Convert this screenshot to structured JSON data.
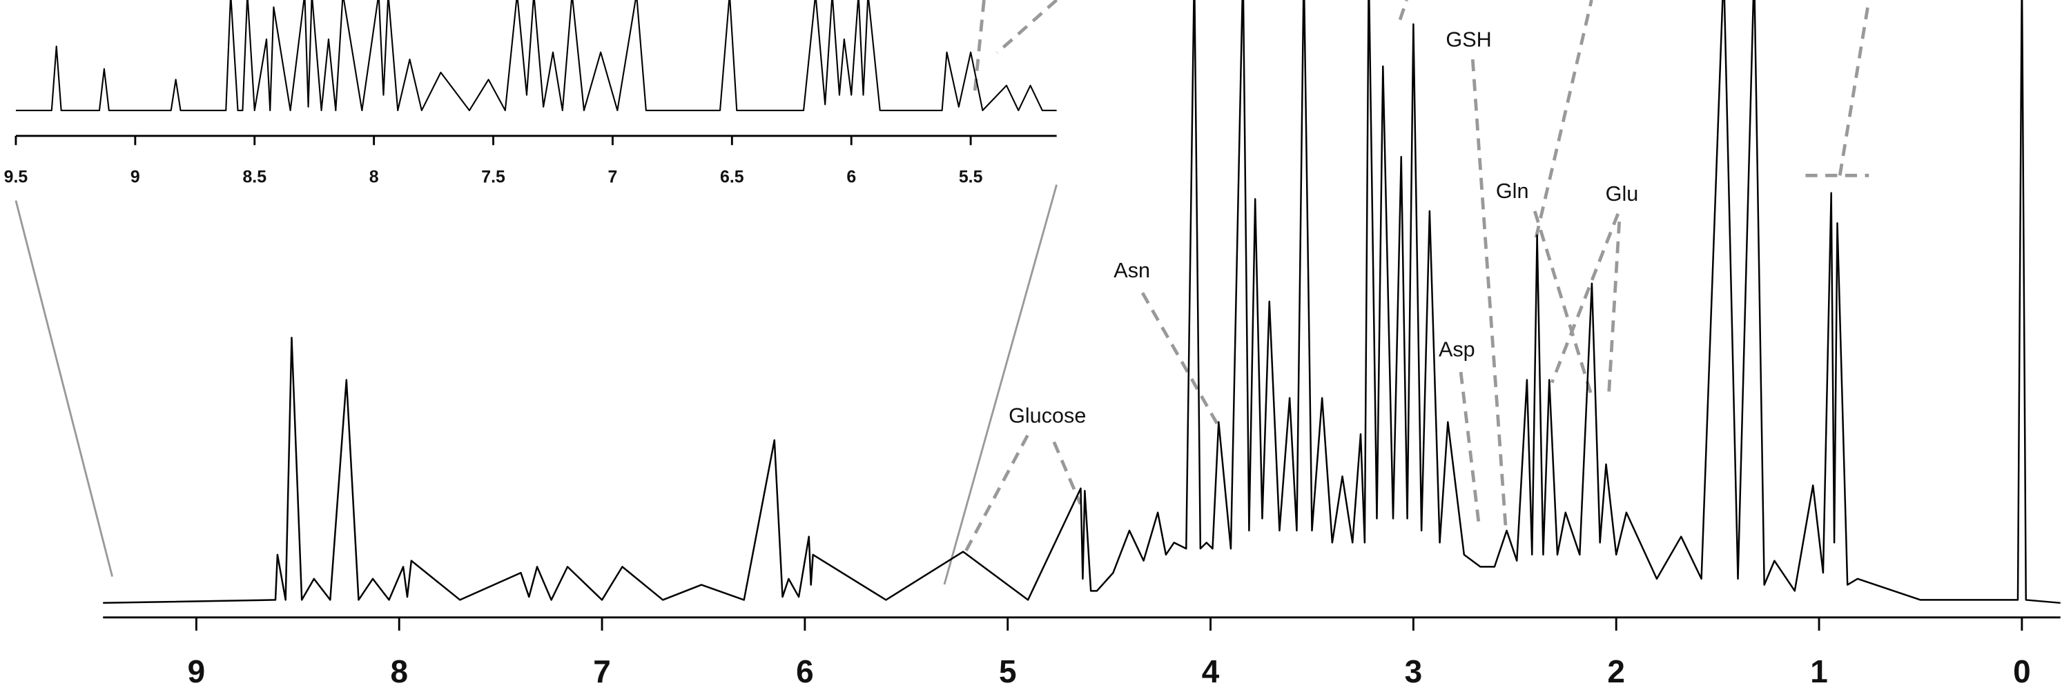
{
  "chart_data": [
    {
      "type": "line",
      "color": "#000000",
      "x": [
        9.46,
        8.61,
        8.6,
        8.56,
        8.53,
        8.48,
        8.42,
        8.34,
        8.26,
        8.2,
        8.13,
        8.05,
        7.98,
        7.96,
        7.94,
        7.7,
        7.4,
        7.36,
        7.32,
        7.25,
        7.17,
        7.0,
        6.9,
        6.7,
        6.51,
        6.3,
        6.15,
        6.11,
        6.08,
        6.03,
        5.98,
        5.97,
        5.96,
        5.6,
        5.22,
        4.9,
        4.64,
        4.63,
        4.62,
        4.59,
        4.56,
        4.48,
        4.4,
        4.33,
        4.26,
        4.22,
        4.18,
        4.12,
        4.08,
        4.05,
        4.02,
        3.99,
        3.96,
        3.9,
        3.84,
        3.81,
        3.78,
        3.745,
        3.71,
        3.66,
        3.61,
        3.575,
        3.54,
        3.5,
        3.45,
        3.4,
        3.35,
        3.3,
        3.26,
        3.24,
        3.22,
        3.18,
        3.15,
        3.1,
        3.06,
        3.03,
        3.0,
        2.96,
        2.92,
        2.87,
        2.83,
        2.75,
        2.67,
        2.6,
        2.54,
        2.49,
        2.44,
        2.415,
        2.39,
        2.36,
        2.33,
        2.29,
        2.25,
        2.18,
        2.12,
        2.08,
        2.05,
        2.0,
        1.95,
        1.8,
        1.68,
        1.58,
        1.47,
        1.4,
        1.32,
        1.27,
        1.22,
        1.12,
        1.03,
        0.98,
        0.94,
        0.925,
        0.91,
        0.86,
        0.81,
        0.5,
        0.02,
        0,
        -0.02,
        -0.19
      ],
      "values": [
        0,
        0.5,
        8,
        0.5,
        44,
        0.5,
        4,
        0.5,
        37,
        0.5,
        4,
        0.5,
        6,
        1,
        7,
        0.5,
        5,
        1,
        6,
        0.5,
        6,
        0.5,
        6,
        0.5,
        3,
        0.5,
        27,
        1,
        4,
        1,
        11,
        3,
        8,
        0.5,
        8.5,
        0.5,
        19,
        4,
        18.6,
        2,
        2,
        5,
        12,
        7,
        15,
        8,
        10,
        9,
        105,
        9,
        10,
        9,
        30,
        9,
        105,
        12,
        67,
        14,
        50,
        12,
        34,
        12,
        105,
        12,
        34,
        10,
        21,
        10,
        28,
        10,
        105,
        14,
        89,
        14,
        74,
        14,
        96,
        12,
        65,
        10,
        30,
        8,
        6,
        6,
        12,
        7,
        37,
        8,
        61,
        8,
        37,
        8,
        15,
        8,
        53,
        10,
        23,
        8,
        15,
        4,
        11,
        4,
        105,
        4,
        105,
        3,
        7,
        2,
        19.5,
        5,
        68,
        10,
        63,
        3,
        4,
        0.5,
        0.5,
        105,
        0.5,
        0
      ],
      "xlim": [
        9.46,
        -0.19
      ],
      "ylim": [
        0,
        100
      ],
      "xticks": [
        9,
        8,
        7,
        6,
        5,
        4,
        3,
        2,
        1,
        0
      ],
      "annotations": [
        "Asn",
        "GSH",
        "Gln",
        "Glu",
        "Asp",
        "Glucose"
      ]
    },
    {
      "type": "line",
      "color": "#000000",
      "x": [
        9.5,
        9.35,
        9.33,
        9.31,
        9.15,
        9.13,
        9.11,
        8.85,
        8.83,
        8.81,
        8.62,
        8.6,
        8.57,
        8.55,
        8.53,
        8.5,
        8.45,
        8.435,
        8.42,
        8.35,
        8.29,
        8.275,
        8.26,
        8.22,
        8.19,
        8.16,
        8.13,
        8.05,
        7.98,
        7.96,
        7.94,
        7.9,
        7.85,
        7.8,
        7.72,
        7.6,
        7.52,
        7.45,
        7.4,
        7.36,
        7.33,
        7.29,
        7.25,
        7.21,
        7.17,
        7.12,
        7.05,
        6.98,
        6.9,
        6.86,
        6.55,
        6.51,
        6.48,
        6.2,
        6.15,
        6.11,
        6.08,
        6.05,
        6.03,
        6.0,
        5.97,
        5.95,
        5.93,
        5.88,
        5.62,
        5.6,
        5.55,
        5.5,
        5.45,
        5.35,
        5.3,
        5.25,
        5.2,
        5.14
      ],
      "values": [
        7,
        7,
        61,
        7,
        7,
        42,
        7,
        7,
        33,
        7,
        7,
        105,
        7,
        7,
        105,
        7,
        67,
        7,
        94,
        7,
        105,
        10,
        105,
        7,
        67,
        7,
        105,
        7,
        105,
        20,
        105,
        7,
        50,
        7,
        39,
        7,
        33,
        7,
        105,
        20,
        105,
        10,
        56,
        7,
        105,
        7,
        56,
        7,
        105,
        7,
        7,
        105,
        7,
        7,
        105,
        12,
        105,
        20,
        67,
        20,
        105,
        20,
        105,
        7,
        7,
        56,
        10,
        56,
        7,
        28,
        7,
        28,
        7,
        7
      ],
      "xlim": [
        9.5,
        5.14
      ],
      "ylim": [
        0,
        100
      ],
      "xticks": [
        9.5,
        9,
        8.5,
        8,
        7.5,
        7,
        6.5,
        6,
        5.5
      ]
    }
  ]
}
